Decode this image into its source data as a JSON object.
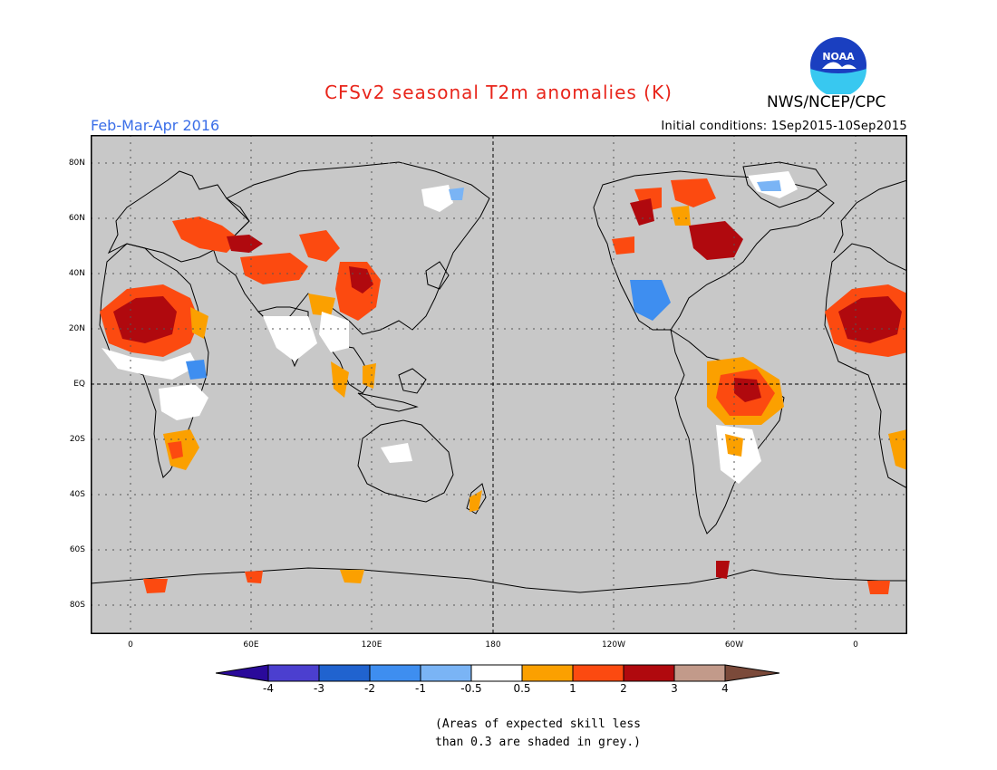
{
  "title": "CFSv2 seasonal T2m anomalies (K)",
  "agency": "NWS/NCEP/CPC",
  "logo_text": "NOAA",
  "period": "Feb-Mar-Apr 2016",
  "initial_conditions": "Initial conditions: 1Sep2015-10Sep2015",
  "lat_labels": [
    "80N",
    "60N",
    "40N",
    "20N",
    "EQ",
    "20S",
    "40S",
    "60S",
    "80S"
  ],
  "lon_labels": [
    "0",
    "60E",
    "120E",
    "180",
    "120W",
    "60W",
    "0"
  ],
  "colorbar": {
    "labels": [
      "-4",
      "-3",
      "-2",
      "-1",
      "-0.5",
      "0.5",
      "1",
      "2",
      "3",
      "4"
    ],
    "colors": [
      "#2a0a9a",
      "#4b3fcf",
      "#2063cf",
      "#3e8ef0",
      "#7ab4f5",
      "#ffffff",
      "#fba000",
      "#fc4a10",
      "#b0090e",
      "#c29a8a",
      "#7b4a3a"
    ]
  },
  "note_line1": "(Areas of expected skill less",
  "note_line2": "than 0.3 are shaded in grey.)",
  "colors": {
    "grey_skill": "#c8c8c8",
    "title_red": "#e8251b",
    "period_blue": "#3a6ee8"
  }
}
